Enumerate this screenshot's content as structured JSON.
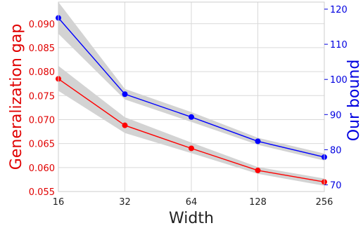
{
  "chart_data": {
    "type": "line",
    "xlabel": "Width",
    "x": [
      16,
      32,
      64,
      128,
      256
    ],
    "x_tick_labels": [
      "16",
      "32",
      "64",
      "128",
      "256"
    ],
    "x_scale": "log2",
    "grid": true,
    "series": [
      {
        "name": "Generalization gap",
        "axis": "left",
        "color": "#ff0000",
        "values": [
          0.0785,
          0.0688,
          0.064,
          0.0594,
          0.057
        ],
        "band_lower": [
          0.076,
          0.0672,
          0.063,
          0.0587,
          0.0562
        ],
        "band_upper": [
          0.0812,
          0.0705,
          0.0652,
          0.0601,
          0.0577
        ]
      },
      {
        "name": "Our bound",
        "axis": "right",
        "color": "#0000ff",
        "values": [
          117.5,
          95.8,
          89.3,
          82.4,
          77.9
        ],
        "band_lower": [
          113.0,
          94.3,
          87.9,
          81.4,
          76.9
        ],
        "band_upper": [
          122.0,
          97.3,
          90.7,
          83.4,
          78.9
        ]
      }
    ],
    "y_left": {
      "label": "Generalization gap",
      "color": "#e00000",
      "range": [
        0.055,
        0.0945
      ],
      "ticks": [
        0.055,
        0.06,
        0.065,
        0.07,
        0.075,
        0.08,
        0.085,
        0.09
      ],
      "tick_labels": [
        "0.055",
        "0.060",
        "0.065",
        "0.070",
        "0.075",
        "0.080",
        "0.085",
        "0.090"
      ]
    },
    "y_right": {
      "label": "Our bound",
      "color": "#0000e0",
      "range": [
        68.1,
        122.0
      ],
      "ticks": [
        70,
        80,
        90,
        100,
        110,
        120
      ],
      "tick_labels": [
        "70",
        "80",
        "90",
        "100",
        "110",
        "120"
      ]
    },
    "band_color": "#d3d3d3"
  }
}
